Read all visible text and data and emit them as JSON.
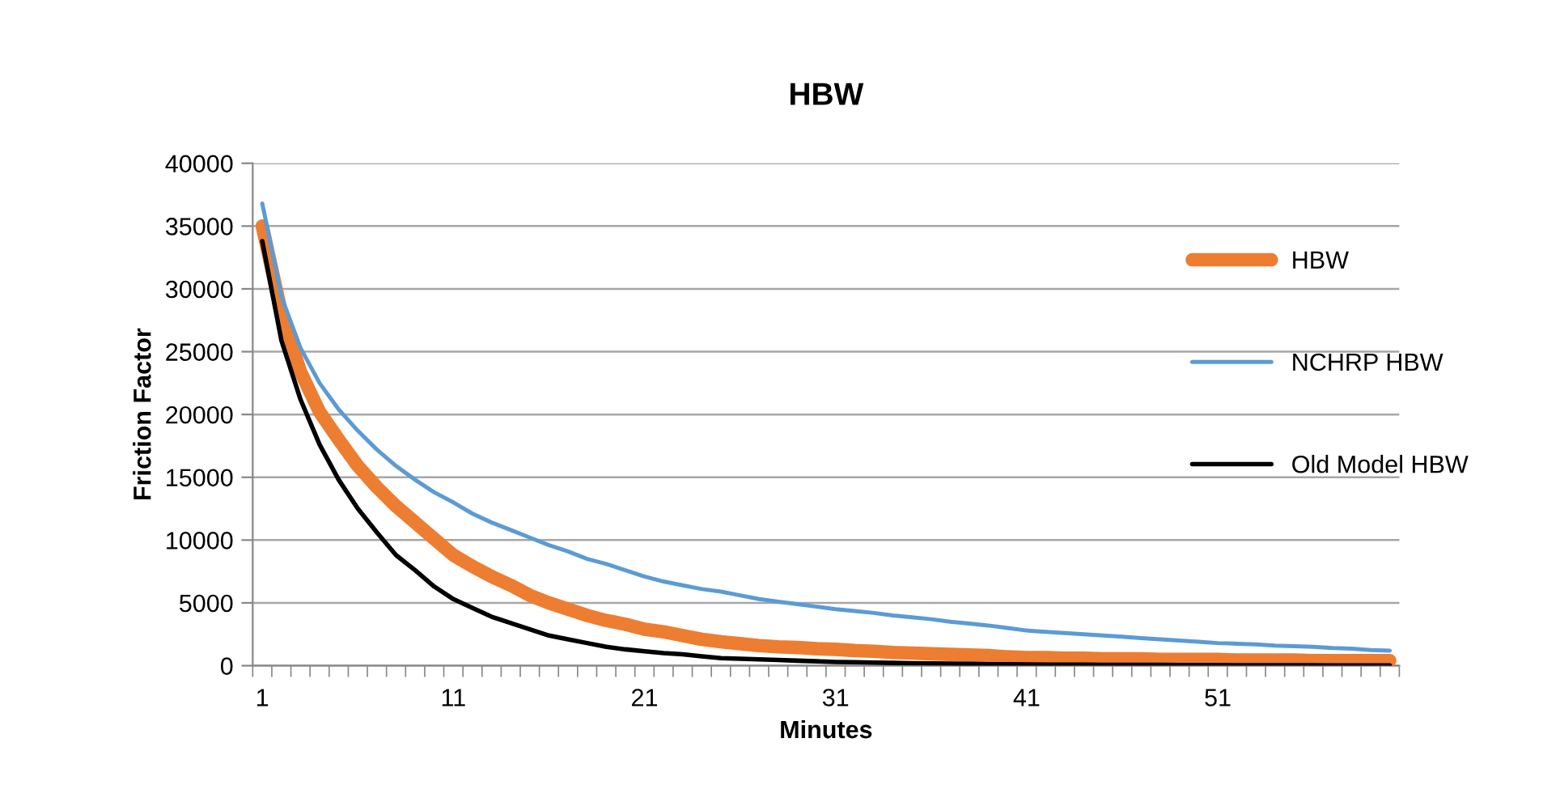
{
  "chart_data": {
    "type": "line",
    "title": "HBW",
    "xlabel": "Minutes",
    "ylabel": "Friction Factor",
    "categories": [
      "1",
      null,
      null,
      null,
      null,
      null,
      null,
      null,
      null,
      null,
      "11",
      null,
      null,
      null,
      null,
      null,
      null,
      null,
      null,
      null,
      "21",
      null,
      null,
      null,
      null,
      null,
      null,
      null,
      null,
      null,
      "31",
      null,
      null,
      null,
      null,
      null,
      null,
      null,
      null,
      null,
      "41",
      null,
      null,
      null,
      null,
      null,
      null,
      null,
      null,
      null,
      "51",
      null,
      null,
      null,
      null,
      null,
      null,
      null,
      null,
      null
    ],
    "series": [
      {
        "name": "HBW",
        "color": "#ed7d31",
        "values": [
          35000,
          28100,
          23400,
          20200,
          18000,
          15900,
          14200,
          12700,
          11400,
          10100,
          8800,
          7900,
          7100,
          6400,
          5600,
          5000,
          4500,
          4000,
          3600,
          3300,
          2900,
          2700,
          2400,
          2100,
          1900,
          1750,
          1600,
          1500,
          1450,
          1350,
          1300,
          1200,
          1150,
          1050,
          1000,
          950,
          900,
          850,
          800,
          700,
          650,
          650,
          600,
          600,
          550,
          550,
          550,
          500,
          500,
          500,
          500,
          450,
          450,
          450,
          450,
          400,
          400,
          400,
          400,
          400
        ]
      },
      {
        "name": "NCHRP HBW",
        "color": "#5b9bd5",
        "values": [
          36800,
          29400,
          25300,
          22500,
          20400,
          18700,
          17200,
          15900,
          14800,
          13800,
          13000,
          12100,
          11400,
          10800,
          10200,
          9600,
          9100,
          8500,
          8100,
          7600,
          7100,
          6700,
          6400,
          6100,
          5900,
          5600,
          5300,
          5100,
          4900,
          4700,
          4500,
          4350,
          4200,
          4000,
          3850,
          3700,
          3500,
          3350,
          3200,
          3000,
          2800,
          2700,
          2600,
          2500,
          2400,
          2300,
          2200,
          2100,
          2000,
          1900,
          1800,
          1750,
          1700,
          1600,
          1550,
          1500,
          1400,
          1350,
          1250,
          1200
        ]
      },
      {
        "name": "Old Model HBW",
        "color": "#000000",
        "values": [
          33800,
          25900,
          21200,
          17600,
          14800,
          12500,
          10600,
          8800,
          7600,
          6300,
          5300,
          4600,
          3900,
          3400,
          2900,
          2400,
          2100,
          1800,
          1500,
          1300,
          1150,
          1000,
          900,
          750,
          600,
          550,
          500,
          450,
          400,
          350,
          300,
          280,
          250,
          220,
          200,
          180,
          160,
          140,
          120,
          110,
          100,
          90,
          80,
          80,
          70,
          70,
          60,
          60,
          50,
          50,
          50,
          40,
          40,
          30,
          30,
          30,
          20,
          20,
          20,
          20
        ]
      }
    ],
    "ylim": [
      0,
      40000
    ],
    "yticks": [
      0,
      5000,
      10000,
      15000,
      20000,
      25000,
      30000,
      35000,
      40000
    ],
    "grid": "y",
    "legend": "right",
    "marker": "none",
    "line_style": "solid"
  }
}
